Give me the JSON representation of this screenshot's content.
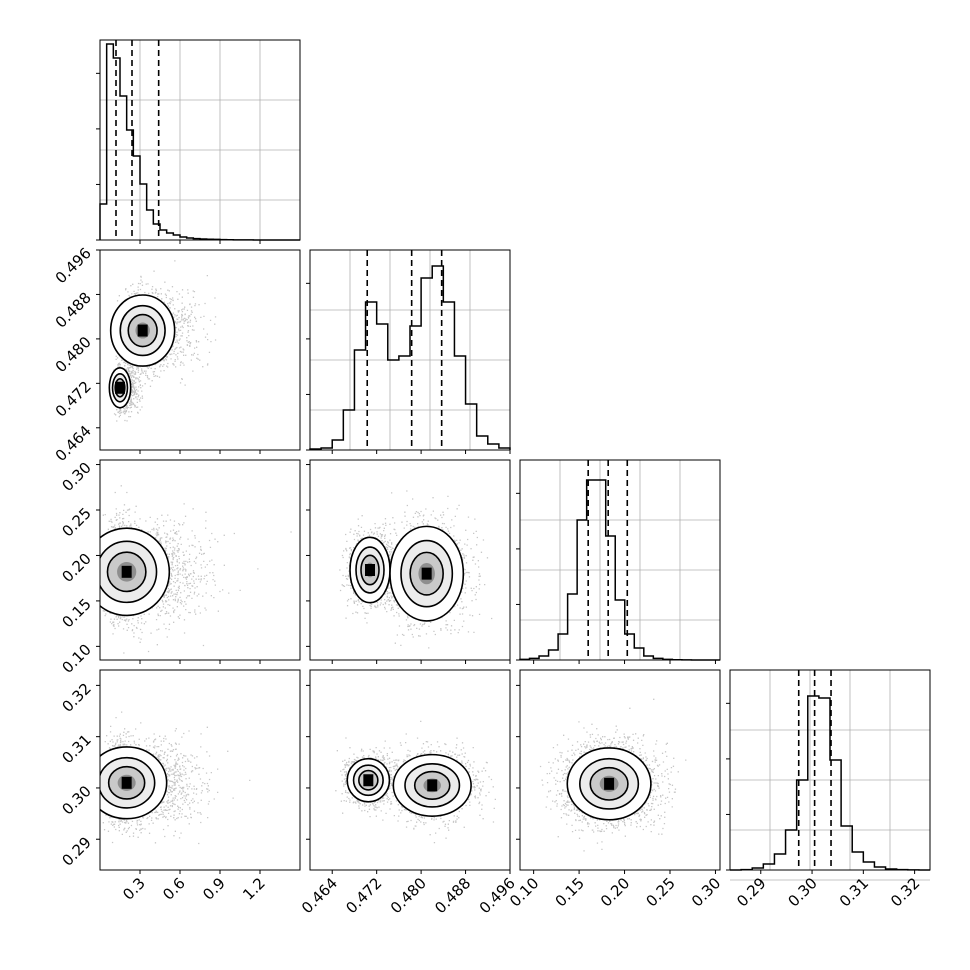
{
  "chart_data": {
    "type": "corner",
    "parameters": [
      {
        "range": [
          0.0,
          1.5
        ],
        "ticks": [
          {
            "v": 0.3,
            "label": "0.3"
          },
          {
            "v": 0.6,
            "label": "0.6"
          },
          {
            "v": 0.9,
            "label": "0.9"
          },
          {
            "v": 1.2,
            "label": "1.2"
          }
        ],
        "quantiles": [
          0.12,
          0.24,
          0.44
        ],
        "histogram": [
          0.18,
          0.98,
          0.91,
          0.72,
          0.55,
          0.42,
          0.28,
          0.15,
          0.08,
          0.05,
          0.035,
          0.025,
          0.015,
          0.01,
          0.007,
          0.005,
          0.004,
          0.003,
          0.002,
          0.001,
          0.0008,
          0.0006,
          0.0004,
          0.0003,
          0.0002,
          0.0002,
          0.0001,
          0.0001,
          5e-05,
          0.0
        ]
      },
      {
        "range": [
          0.46,
          0.496
        ],
        "ticks": [
          {
            "v": 0.464,
            "label": "0.464"
          },
          {
            "v": 0.472,
            "label": "0.472"
          },
          {
            "v": 0.48,
            "label": "0.480"
          },
          {
            "v": 0.488,
            "label": "0.488"
          },
          {
            "v": 0.496,
            "label": "0.496"
          }
        ],
        "quantiles": [
          0.4703,
          0.4783,
          0.4837
        ],
        "histogram": [
          0.005,
          0.01,
          0.05,
          0.2,
          0.5,
          0.74,
          0.63,
          0.45,
          0.47,
          0.62,
          0.86,
          0.92,
          0.74,
          0.47,
          0.23,
          0.07,
          0.03,
          0.01
        ]
      },
      {
        "range": [
          0.085,
          0.305
        ],
        "ticks": [
          {
            "v": 0.1,
            "label": "0.10"
          },
          {
            "v": 0.15,
            "label": "0.15"
          },
          {
            "v": 0.2,
            "label": "0.20"
          },
          {
            "v": 0.25,
            "label": "0.25"
          },
          {
            "v": 0.3,
            "label": "0.30"
          }
        ],
        "quantiles": [
          0.16,
          0.182,
          0.203
        ],
        "histogram": [
          0.003,
          0.008,
          0.02,
          0.05,
          0.13,
          0.33,
          0.7,
          0.9,
          0.9,
          0.62,
          0.3,
          0.13,
          0.06,
          0.02,
          0.008,
          0.003,
          0.001,
          0.0005,
          0.0002,
          0.0001,
          0.0
        ]
      },
      {
        "range": [
          0.284,
          0.323
        ],
        "ticks": [
          {
            "v": 0.29,
            "label": "0.29"
          },
          {
            "v": 0.3,
            "label": "0.30"
          },
          {
            "v": 0.31,
            "label": "0.31"
          },
          {
            "v": 0.32,
            "label": "0.32"
          }
        ],
        "quantiles": [
          0.2974,
          0.3005,
          0.3037
        ],
        "histogram": [
          0.0,
          0.002,
          0.01,
          0.03,
          0.08,
          0.2,
          0.45,
          0.87,
          0.86,
          0.55,
          0.22,
          0.09,
          0.04,
          0.015,
          0.005,
          0.002,
          0.0005,
          0.0
        ]
      }
    ],
    "joint_modes": [
      {
        "pair": [
          1,
          0
        ],
        "components": [
          {
            "mx": 0.15,
            "my": 0.4712,
            "sx": 0.04,
            "sy": 0.0018,
            "w": 1.0
          },
          {
            "mx": 0.32,
            "my": 0.4815,
            "sx": 0.12,
            "sy": 0.0032,
            "w": 1.4
          }
        ]
      },
      {
        "pair": [
          2,
          0
        ],
        "components": [
          {
            "mx": 0.2,
            "my": 0.182,
            "sx": 0.16,
            "sy": 0.024,
            "w": 1.0
          }
        ]
      },
      {
        "pair": [
          2,
          1
        ],
        "components": [
          {
            "mx": 0.4708,
            "my": 0.184,
            "sx": 0.0018,
            "sy": 0.018,
            "w": 1.0
          },
          {
            "mx": 0.481,
            "my": 0.18,
            "sx": 0.0033,
            "sy": 0.026,
            "w": 1.3
          }
        ]
      },
      {
        "pair": [
          3,
          0
        ],
        "components": [
          {
            "mx": 0.2,
            "my": 0.301,
            "sx": 0.15,
            "sy": 0.0035,
            "w": 1.0
          }
        ]
      },
      {
        "pair": [
          3,
          1
        ],
        "components": [
          {
            "mx": 0.4705,
            "my": 0.3015,
            "sx": 0.0019,
            "sy": 0.0021,
            "w": 1.0
          },
          {
            "mx": 0.482,
            "my": 0.3005,
            "sx": 0.0035,
            "sy": 0.003,
            "w": 1.3
          }
        ]
      },
      {
        "pair": [
          3,
          2
        ],
        "components": [
          {
            "mx": 0.183,
            "my": 0.3008,
            "sx": 0.023,
            "sy": 0.0035,
            "w": 1.0
          }
        ]
      }
    ],
    "grid": true
  }
}
